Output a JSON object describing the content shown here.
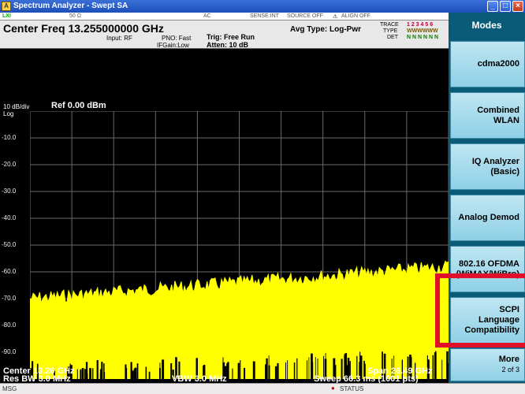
{
  "window": {
    "title": "Spectrum Analyzer - Swept SA",
    "app_icon_label": "A",
    "minimize": "_",
    "maximize": "□",
    "close": "×"
  },
  "status": {
    "impedance": "50 Ω",
    "coupling": "AC",
    "sense": "SENSE:INT",
    "source": "SOURCE OFF",
    "align": "ALIGN OFF",
    "logo": "LXI"
  },
  "header": {
    "center_freq": "Center Freq  13.255000000 GHz",
    "input": "Input: RF",
    "pno": "PNO: Fast",
    "ifgain": "IFGain:Low",
    "trig": "Trig: Free Run",
    "atten": "Atten: 10 dB",
    "avg_type": "Avg Type: Log-Pwr",
    "trace_label": "TRACE",
    "type_label": "TYPE",
    "det_label": "DET",
    "trace_nums": "1 2 3 4 5 6",
    "type_vals": "WWWWWW",
    "det_vals": "N N N N N N"
  },
  "graph": {
    "scale": "10 dB/div",
    "ref": "Ref 0.00 dBm",
    "log": "Log",
    "y_ticks": [
      "-10.0",
      "-20.0",
      "-30.0",
      "-40.0",
      "-50.0",
      "-60.0",
      "-70.0",
      "-80.0",
      "-90.0"
    ]
  },
  "bottom": {
    "center": "Center 13.26 GHz",
    "res_bw": "Res BW 3.0 MHz",
    "vbw": "VBW 3.0 MHz",
    "span": "Span 26.49 GHz",
    "sweep": "Sweep  66.3 ms (1001 pts)"
  },
  "softkeys": {
    "title": "Modes",
    "items": [
      {
        "line1": "cdma2000",
        "line2": ""
      },
      {
        "line1": "Combined",
        "line2": "WLAN"
      },
      {
        "line1": "IQ Analyzer",
        "line2": "(Basic)"
      },
      {
        "line1": "Analog Demod",
        "line2": ""
      },
      {
        "line1": "802.16 OFDMA",
        "line2": "(WiMAX/WiBro)"
      },
      {
        "line1": "SCPI",
        "line2": "Language",
        "line3": "Compatibility"
      },
      {
        "line1": "More",
        "line2": "2 of 3"
      }
    ]
  },
  "statusbar": {
    "msg": "MSG",
    "status": "STATUS"
  },
  "colors": {
    "trace": "#ffff00",
    "grid": "#6b6b6b",
    "highlight": "#e0102a",
    "softkey_panel": "#0a5b78"
  }
}
